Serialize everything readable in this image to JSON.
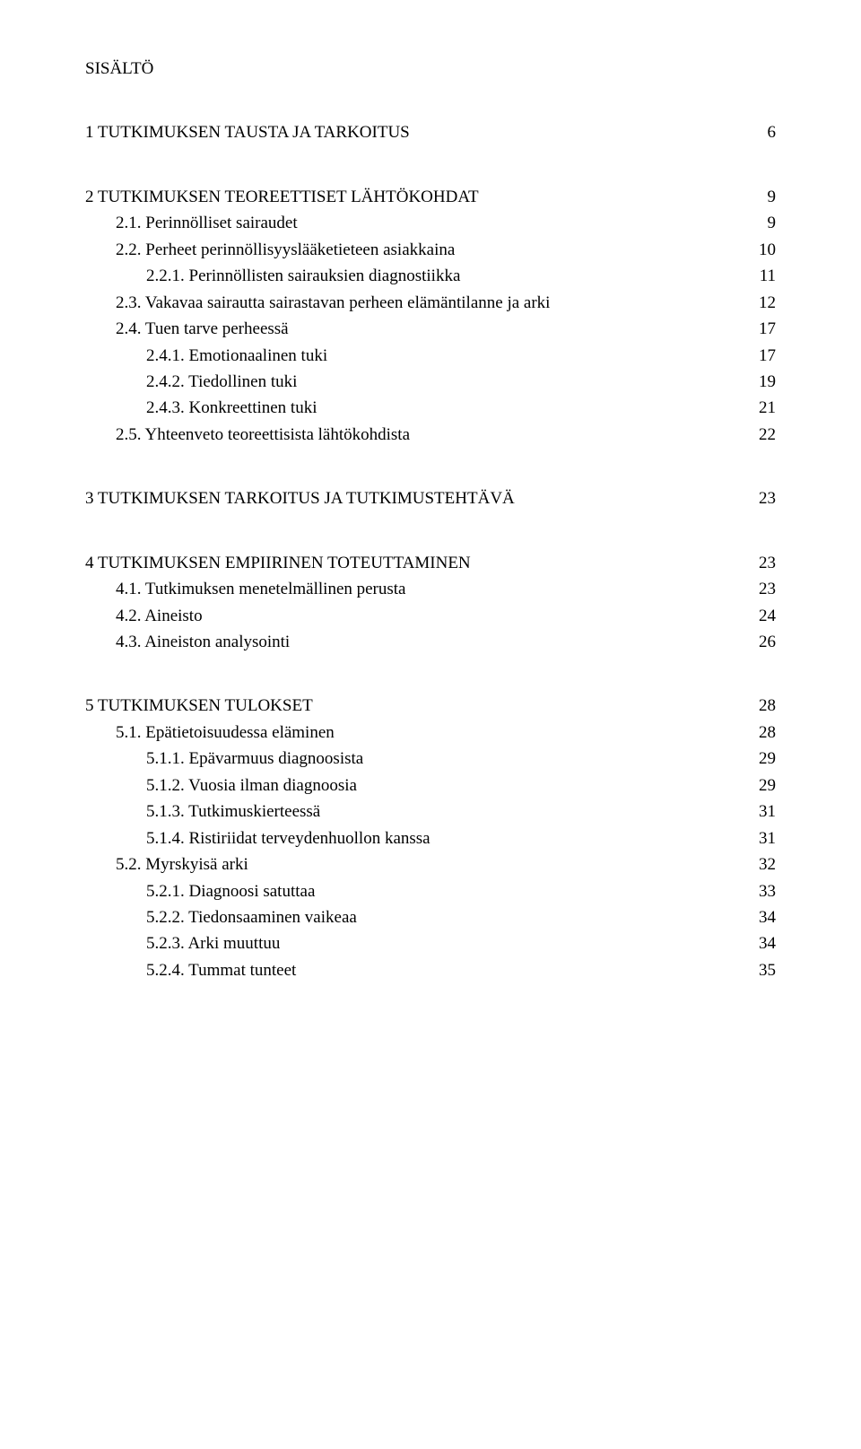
{
  "title": "SISÄLTÖ",
  "sections": [
    {
      "heading": {
        "label": "1 TUTKIMUKSEN TAUSTA JA TARKOITUS",
        "page": "6"
      }
    },
    {
      "heading": {
        "label": "2 TUTKIMUKSEN TEOREETTISET LÄHTÖKOHDAT",
        "page": "9"
      },
      "items": [
        {
          "label": "2.1. Perinnölliset sairaudet",
          "page": "9",
          "indent": 0
        },
        {
          "label": "2.2. Perheet perinnöllisyyslääketieteen asiakkaina",
          "page": "10",
          "indent": 0
        },
        {
          "label": "2.2.1. Perinnöllisten sairauksien diagnostiikka",
          "page": "11",
          "indent": 1
        },
        {
          "label": "2.3. Vakavaa sairautta sairastavan perheen elämäntilanne ja arki",
          "page": "12",
          "indent": 0
        },
        {
          "label": "2.4. Tuen tarve perheessä",
          "page": "17",
          "indent": 0
        },
        {
          "label": "2.4.1. Emotionaalinen tuki",
          "page": "17",
          "indent": 1
        },
        {
          "label": "2.4.2. Tiedollinen tuki",
          "page": "19",
          "indent": 1
        },
        {
          "label": "2.4.3. Konkreettinen tuki",
          "page": "21",
          "indent": 1
        },
        {
          "label": "2.5. Yhteenveto teoreettisista lähtökohdista",
          "page": "22",
          "indent": 0
        }
      ]
    },
    {
      "heading": {
        "label": "3 TUTKIMUKSEN TARKOITUS JA TUTKIMUSTEHTÄVÄ",
        "page": "23"
      }
    },
    {
      "heading": {
        "label": "4 TUTKIMUKSEN EMPIIRINEN TOTEUTTAMINEN",
        "page": "23"
      },
      "items": [
        {
          "label": "4.1. Tutkimuksen menetelmällinen perusta",
          "page": "23",
          "indent": 0
        },
        {
          "label": "4.2. Aineisto",
          "page": "24",
          "indent": 0
        },
        {
          "label": "4.3. Aineiston analysointi",
          "page": "26",
          "indent": 0
        }
      ]
    },
    {
      "heading": {
        "label": "5 TUTKIMUKSEN TULOKSET",
        "page": "28"
      },
      "items": [
        {
          "label": "5.1. Epätietoisuudessa eläminen",
          "page": "28",
          "indent": 0
        },
        {
          "label": "5.1.1. Epävarmuus diagnoosista",
          "page": "29",
          "indent": 1
        },
        {
          "label": "5.1.2. Vuosia ilman diagnoosia",
          "page": "29",
          "indent": 1
        },
        {
          "label": "5.1.3. Tutkimuskierteessä",
          "page": "31",
          "indent": 1
        },
        {
          "label": "5.1.4. Ristiriidat terveydenhuollon kanssa",
          "page": "31",
          "indent": 1
        },
        {
          "label": "5.2. Myrskyisä arki",
          "page": "32",
          "indent": 0
        },
        {
          "label": "5.2.1. Diagnoosi satuttaa",
          "page": "33",
          "indent": 1
        },
        {
          "label": "5.2.2. Tiedonsaaminen vaikeaa",
          "page": "34",
          "indent": 1
        },
        {
          "label": "5.2.3. Arki muuttuu",
          "page": "34",
          "indent": 1
        },
        {
          "label": "5.2.4. Tummat tunteet",
          "page": "35",
          "indent": 1
        }
      ]
    }
  ]
}
